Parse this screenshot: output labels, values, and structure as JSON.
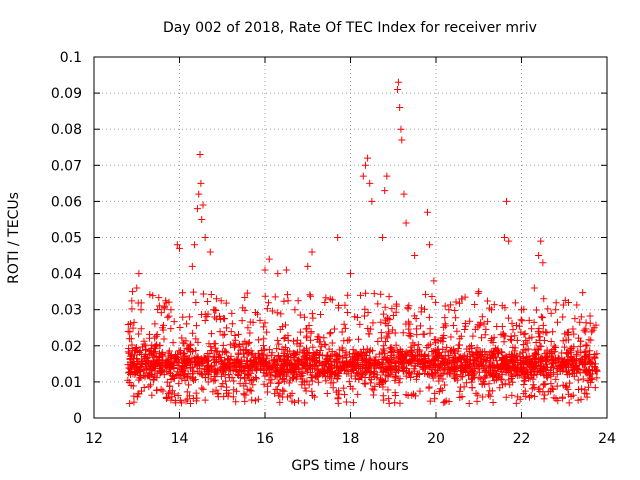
{
  "chart_data": {
    "type": "scatter",
    "title": "Day 002 of 2018, Rate Of TEC Index for receiver mriv",
    "xlabel": "GPS time / hours",
    "ylabel": "ROTI / TECUs",
    "xlim": [
      12,
      24
    ],
    "ylim": [
      0,
      0.1
    ],
    "x_ticks": [
      12,
      14,
      16,
      18,
      20,
      22,
      24
    ],
    "x_tick_labels": [
      "12",
      "14",
      "16",
      "18",
      "20",
      "22",
      "24"
    ],
    "y_ticks": [
      0,
      0.01,
      0.02,
      0.03,
      0.04,
      0.05,
      0.06,
      0.07,
      0.08,
      0.09,
      0.1
    ],
    "y_tick_labels": [
      "0",
      "0.01",
      "0.02",
      "0.03",
      "0.04",
      "0.05",
      "0.06",
      "0.07",
      "0.08",
      "0.09",
      "0.1"
    ],
    "grid": true,
    "marker": "+",
    "color": "#ff0000",
    "series": [
      {
        "name": "ROTI",
        "x": [
          12.8,
          12.9,
          13.0,
          13.05,
          13.1,
          13.2,
          13.4,
          13.6,
          13.8,
          13.95,
          14.0,
          14.3,
          14.35,
          14.42,
          14.45,
          14.48,
          14.5,
          14.52,
          14.55,
          14.6,
          14.72,
          14.8,
          15.0,
          15.3,
          15.6,
          16.0,
          16.1,
          16.3,
          16.5,
          16.7,
          17.0,
          17.1,
          17.4,
          17.7,
          18.0,
          18.3,
          18.35,
          18.4,
          18.45,
          18.5,
          18.75,
          18.8,
          18.85,
          19.1,
          19.12,
          19.15,
          19.18,
          19.2,
          19.25,
          19.3,
          19.5,
          19.8,
          19.85,
          19.95,
          20.3,
          20.6,
          21.0,
          21.3,
          21.6,
          21.65,
          21.7,
          22.0,
          22.3,
          22.4,
          22.45,
          22.5,
          22.8,
          23.1,
          23.4,
          23.7
        ],
        "y": [
          0.024,
          0.035,
          0.036,
          0.04,
          0.03,
          0.02,
          0.018,
          0.025,
          0.03,
          0.048,
          0.047,
          0.042,
          0.048,
          0.058,
          0.062,
          0.073,
          0.065,
          0.055,
          0.059,
          0.05,
          0.046,
          0.03,
          0.015,
          0.02,
          0.025,
          0.041,
          0.044,
          0.04,
          0.041,
          0.03,
          0.042,
          0.046,
          0.032,
          0.05,
          0.04,
          0.067,
          0.07,
          0.072,
          0.065,
          0.06,
          0.05,
          0.063,
          0.067,
          0.091,
          0.093,
          0.086,
          0.08,
          0.077,
          0.062,
          0.054,
          0.045,
          0.057,
          0.048,
          0.038,
          0.03,
          0.033,
          0.035,
          0.03,
          0.05,
          0.06,
          0.049,
          0.03,
          0.036,
          0.045,
          0.049,
          0.043,
          0.03,
          0.032,
          0.028,
          0.025
        ],
        "band_min": 0.004,
        "band_typical": [
          0.01,
          0.02
        ],
        "band_max": 0.035
      }
    ]
  }
}
